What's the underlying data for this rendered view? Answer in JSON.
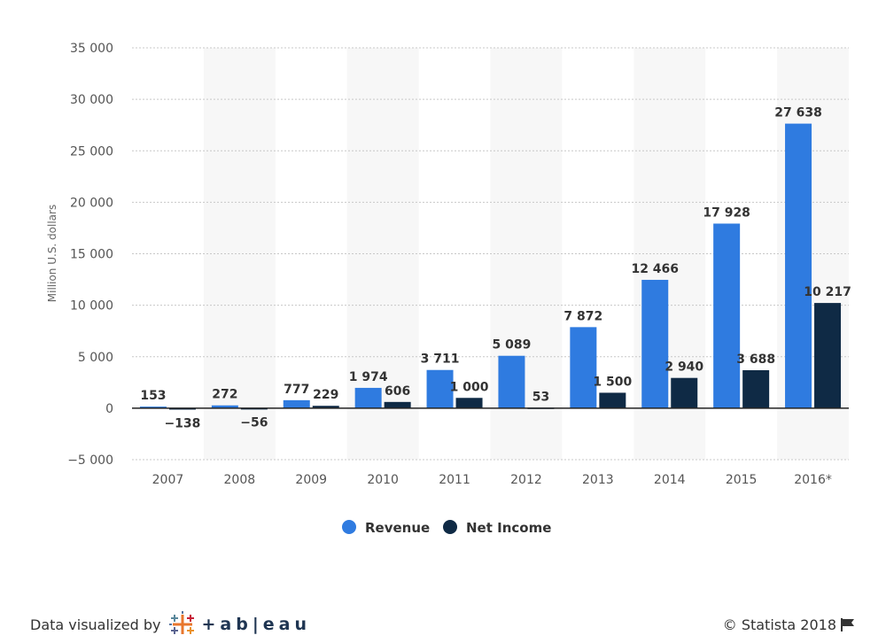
{
  "chart_data": {
    "type": "bar",
    "title": "",
    "xlabel": "",
    "ylabel": "Million U.S. dollars",
    "ylim": [
      -5000,
      35000
    ],
    "yticks": [
      35000,
      30000,
      25000,
      20000,
      15000,
      10000,
      5000,
      0,
      -5000
    ],
    "ytick_labels": [
      "35 000",
      "30 000",
      "25 000",
      "20 000",
      "15 000",
      "10 000",
      "5 000",
      "0",
      "−5 000"
    ],
    "categories": [
      "2007",
      "2008",
      "2009",
      "2010",
      "2011",
      "2012",
      "2013",
      "2014",
      "2015",
      "2016*"
    ],
    "series": [
      {
        "name": "Revenue",
        "color": "#2f7be0",
        "values": [
          153,
          272,
          777,
          1974,
          3711,
          5089,
          7872,
          12466,
          17928,
          27638
        ],
        "labels": [
          "153",
          "272",
          "777",
          "1 974",
          "3 711",
          "5 089",
          "7 872",
          "12 466",
          "17 928",
          "27 638"
        ]
      },
      {
        "name": "Net Income",
        "color": "#0f2a45",
        "values": [
          -138,
          -56,
          229,
          606,
          1000,
          53,
          1500,
          2940,
          3688,
          10217
        ],
        "labels": [
          "−138",
          "−56",
          "229",
          "606",
          "1 000",
          "53",
          "1 500",
          "2 940",
          "3 688",
          "10 217"
        ]
      }
    ],
    "grid": true,
    "legend": "bottom-center"
  },
  "footer": {
    "credit_text": "Data visualized by",
    "brand_text": "+ab|eau",
    "copyright_text": "© Statista 2018"
  },
  "icons": {
    "tableau_logo": "tableau-logo-icon",
    "flag": "flag-icon"
  }
}
